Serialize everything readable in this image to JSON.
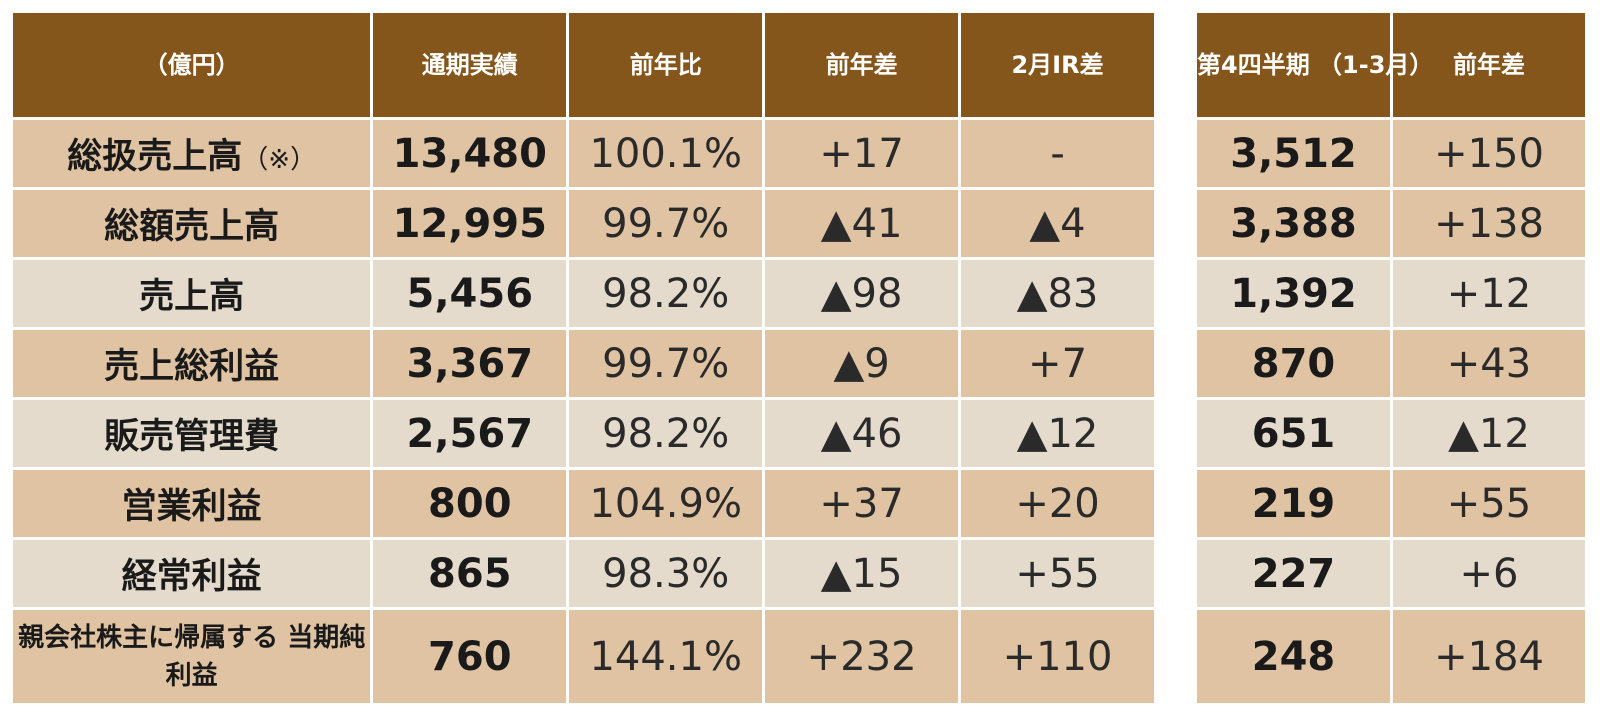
{
  "main_table": {
    "headers": [
      "（億円）",
      "通期実績",
      "前年比",
      "前年差",
      "2月IR差"
    ],
    "rows": [
      {
        "label": "総扱売上高",
        "label_note": "（※）",
        "actual": "13,480",
        "yoy_pct": "100.1%",
        "yoy_diff": "+17",
        "ir_diff": "-"
      },
      {
        "label": "総額売上高",
        "actual": "12,995",
        "yoy_pct": "99.7%",
        "yoy_diff": "▲41",
        "ir_diff": "▲4"
      },
      {
        "label": "売上高",
        "actual": "5,456",
        "yoy_pct": "98.2%",
        "yoy_diff": "▲98",
        "ir_diff": "▲83"
      },
      {
        "label": "売上総利益",
        "actual": "3,367",
        "yoy_pct": "99.7%",
        "yoy_diff": "▲9",
        "ir_diff": "+7"
      },
      {
        "label": "販売管理費",
        "actual": "2,567",
        "yoy_pct": "98.2%",
        "yoy_diff": "▲46",
        "ir_diff": "▲12"
      },
      {
        "label": "営業利益",
        "actual": "800",
        "yoy_pct": "104.9%",
        "yoy_diff": "+37",
        "ir_diff": "+20"
      },
      {
        "label": "経常利益",
        "actual": "865",
        "yoy_pct": "98.3%",
        "yoy_diff": "▲15",
        "ir_diff": "+55"
      },
      {
        "label": "親会社株主に帰属する\n当期純利益",
        "actual": "760",
        "yoy_pct": "144.1%",
        "yoy_diff": "+232",
        "ir_diff": "+110"
      }
    ]
  },
  "q4_table": {
    "headers": [
      "第4四半期\n（1-3月）",
      "前年差"
    ],
    "rows": [
      {
        "value": "3,512",
        "diff": "+150"
      },
      {
        "value": "3,388",
        "diff": "+138"
      },
      {
        "value": "1,392",
        "diff": "+12"
      },
      {
        "value": "870",
        "diff": "+43"
      },
      {
        "value": "651",
        "diff": "▲12"
      },
      {
        "value": "219",
        "diff": "+55"
      },
      {
        "value": "227",
        "diff": "+6"
      },
      {
        "value": "248",
        "diff": "+184"
      }
    ]
  },
  "colors": {
    "header_bg": "#85561b",
    "row_dark": "#dfc3a2",
    "row_light": "#e5dbcc",
    "text": "#1a1a1a"
  }
}
